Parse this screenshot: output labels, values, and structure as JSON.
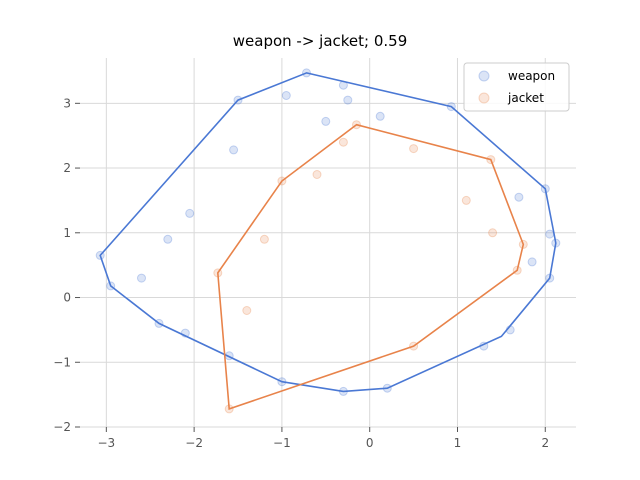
{
  "chart_data": {
    "type": "scatter",
    "title": "weapon -> jacket; 0.59",
    "xlabel": "",
    "ylabel": "",
    "xlim": [
      -3.3,
      2.35
    ],
    "ylim": [
      -2.0,
      3.7
    ],
    "xticks": [
      -3,
      -2,
      -1,
      0,
      1,
      2
    ],
    "yticks": [
      -2,
      -1,
      0,
      1,
      2,
      3
    ],
    "xtick_labels": [
      "−3",
      "−2",
      "−1",
      "0",
      "1",
      "2"
    ],
    "ytick_labels": [
      "−2",
      "−1",
      "0",
      "1",
      "2",
      "3"
    ],
    "grid": true,
    "legend_position": "top-right",
    "series": [
      {
        "name": "weapon",
        "color": "#4a78d4",
        "marker": "circle",
        "alpha": 0.2,
        "hull": [
          [
            -0.72,
            3.47
          ],
          [
            0.93,
            2.95
          ],
          [
            2.0,
            1.68
          ],
          [
            2.1,
            0.98
          ],
          [
            2.12,
            0.84
          ],
          [
            2.05,
            0.3
          ],
          [
            1.5,
            -0.6
          ],
          [
            0.2,
            -1.4
          ],
          [
            -0.3,
            -1.45
          ],
          [
            -1.0,
            -1.3
          ],
          [
            -2.4,
            -0.4
          ],
          [
            -2.95,
            0.18
          ],
          [
            -3.07,
            0.65
          ],
          [
            -1.5,
            3.05
          ]
        ],
        "points": [
          [
            -0.72,
            3.47
          ],
          [
            0.93,
            2.95
          ],
          [
            -1.5,
            3.05
          ],
          [
            -0.95,
            3.12
          ],
          [
            -0.25,
            3.05
          ],
          [
            -0.3,
            3.28
          ],
          [
            0.12,
            2.8
          ],
          [
            -0.5,
            2.72
          ],
          [
            2.0,
            1.68
          ],
          [
            2.12,
            0.84
          ],
          [
            2.05,
            0.98
          ],
          [
            2.05,
            0.3
          ],
          [
            -3.07,
            0.65
          ],
          [
            -2.95,
            0.18
          ],
          [
            -2.4,
            -0.4
          ],
          [
            -1.55,
            2.28
          ],
          [
            -2.05,
            1.3
          ],
          [
            -2.3,
            0.9
          ],
          [
            -2.6,
            0.3
          ],
          [
            -2.1,
            -0.55
          ],
          [
            -1.6,
            -0.9
          ],
          [
            1.7,
            1.55
          ],
          [
            1.85,
            0.55
          ],
          [
            1.6,
            -0.5
          ],
          [
            1.3,
            -0.75
          ],
          [
            0.2,
            -1.4
          ],
          [
            -0.3,
            -1.45
          ],
          [
            -1.0,
            -1.3
          ]
        ]
      },
      {
        "name": "jacket",
        "color": "#e8834a",
        "marker": "circle",
        "alpha": 0.2,
        "hull": [
          [
            -0.15,
            2.67
          ],
          [
            1.38,
            2.13
          ],
          [
            1.75,
            0.82
          ],
          [
            1.68,
            0.42
          ],
          [
            0.5,
            -0.75
          ],
          [
            -1.6,
            -1.72
          ],
          [
            -1.73,
            0.38
          ],
          [
            -1.0,
            1.8
          ]
        ],
        "points": [
          [
            -0.15,
            2.67
          ],
          [
            1.38,
            2.13
          ],
          [
            1.75,
            0.82
          ],
          [
            1.68,
            0.42
          ],
          [
            0.5,
            -0.75
          ],
          [
            -1.6,
            -1.72
          ],
          [
            -1.73,
            0.38
          ],
          [
            -1.0,
            1.8
          ],
          [
            -0.3,
            2.4
          ],
          [
            0.5,
            2.3
          ],
          [
            -0.6,
            1.9
          ],
          [
            1.1,
            1.5
          ],
          [
            1.4,
            1.0
          ],
          [
            -1.2,
            0.9
          ],
          [
            -1.4,
            -0.2
          ]
        ]
      }
    ]
  }
}
